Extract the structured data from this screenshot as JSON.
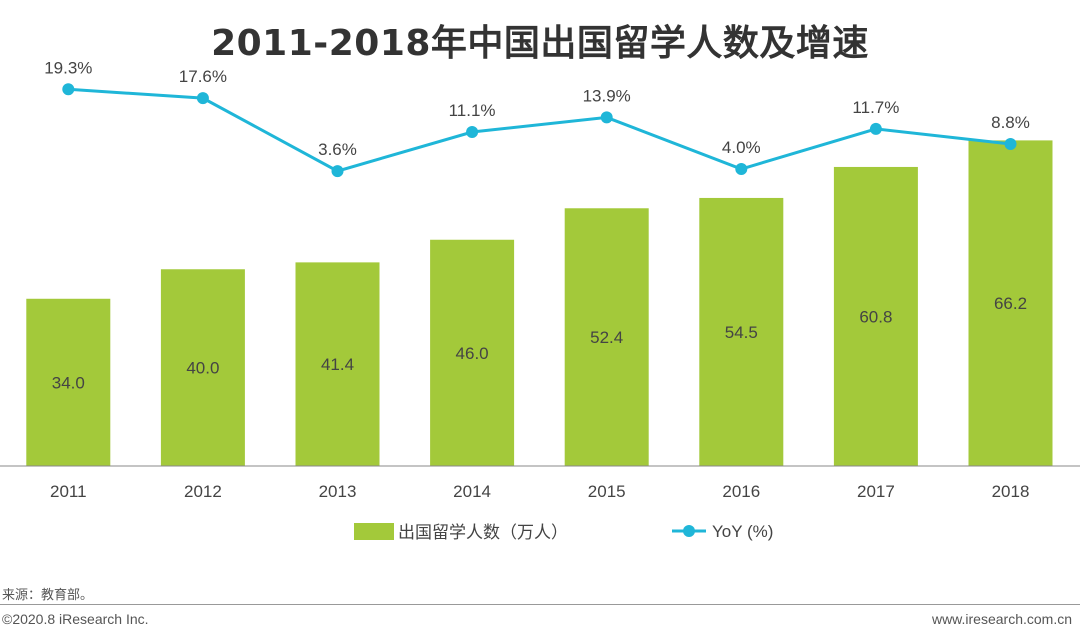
{
  "chart_data": {
    "type": "bar",
    "title": "2011-2018年中国出国留学人数及增速",
    "categories": [
      "2011",
      "2012",
      "2013",
      "2014",
      "2015",
      "2016",
      "2017",
      "2018"
    ],
    "series": [
      {
        "name": "出国留学人数（万人）",
        "kind": "bar",
        "values": [
          34.0,
          40.0,
          41.4,
          46.0,
          52.4,
          54.5,
          60.8,
          66.2
        ],
        "labels": [
          "34.0",
          "40.0",
          "41.4",
          "46.0",
          "52.4",
          "54.5",
          "60.8",
          "66.2"
        ],
        "color": "#a3c93a"
      },
      {
        "name": "YoY (%)",
        "kind": "line",
        "values": [
          19.3,
          17.6,
          3.6,
          11.1,
          13.9,
          4.0,
          11.7,
          8.8
        ],
        "labels": [
          "19.3%",
          "17.6%",
          "3.6%",
          "11.1%",
          "13.9%",
          "4.0%",
          "11.7%",
          "8.8%"
        ],
        "color": "#1fb6d8"
      }
    ],
    "ylim_bar": [
      0,
      67.5
    ],
    "ylim_line": [
      -53,
      23
    ],
    "grid": false,
    "legend": "bottom-center"
  },
  "source": "来源：教育部。",
  "copyright": "©2020.8 iResearch Inc.",
  "website": "www.iresearch.com.cn"
}
